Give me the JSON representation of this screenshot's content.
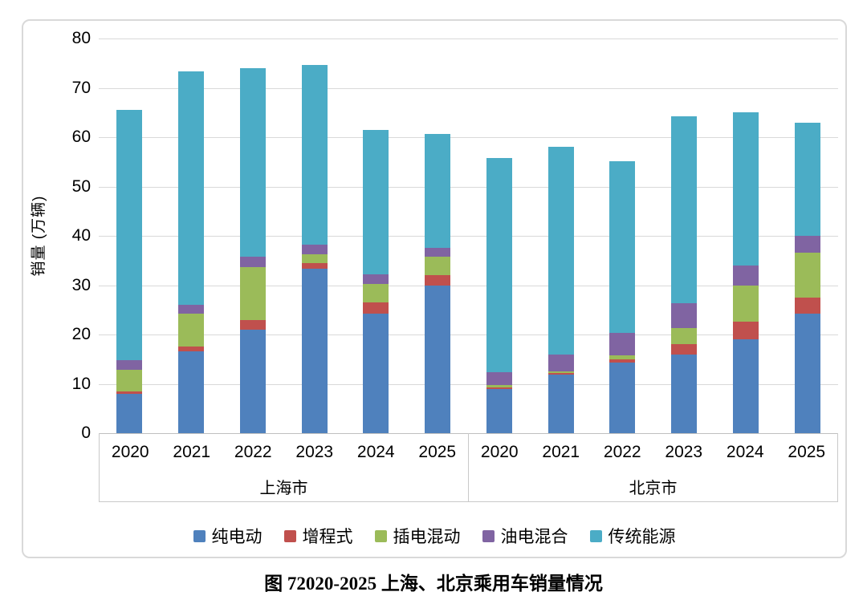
{
  "caption": "图 72020-2025 上海、北京乘用车销量情况",
  "chart_data": {
    "type": "bar",
    "stacked": true,
    "title": "图 72020-2025 上海、北京乘用车销量情况",
    "ylabel": "销量 (万辆)",
    "ylim": [
      0,
      80
    ],
    "ytick_step": 10,
    "yticks": [
      0,
      10,
      20,
      30,
      40,
      50,
      60,
      70,
      80
    ],
    "grid": true,
    "legend_position": "bottom",
    "group_labels": [
      "上海市",
      "北京市"
    ],
    "categories": [
      "2020",
      "2021",
      "2022",
      "2023",
      "2024",
      "2025",
      "2020",
      "2021",
      "2022",
      "2023",
      "2024",
      "2025"
    ],
    "series": [
      {
        "name": "纯电动",
        "color": "#4F81BD",
        "values": [
          8.0,
          16.6,
          21.0,
          33.3,
          24.2,
          29.9,
          9.0,
          11.8,
          14.3,
          15.9,
          19.1,
          24.2
        ]
      },
      {
        "name": "增程式",
        "color": "#C0504D",
        "values": [
          0.4,
          1.0,
          1.9,
          1.2,
          2.3,
          2.2,
          0.3,
          0.4,
          0.7,
          2.2,
          3.5,
          3.3
        ]
      },
      {
        "name": "插电混动",
        "color": "#9BBB59",
        "values": [
          4.4,
          6.7,
          10.8,
          1.8,
          3.7,
          3.7,
          0.4,
          0.4,
          0.8,
          3.2,
          7.3,
          9.1
        ]
      },
      {
        "name": "油电混合",
        "color": "#8064A2",
        "values": [
          2.0,
          1.8,
          2.0,
          1.9,
          2.0,
          1.8,
          2.7,
          3.4,
          4.5,
          5.0,
          4.1,
          3.4
        ]
      },
      {
        "name": "传统能源",
        "color": "#4BACC6",
        "values": [
          50.7,
          47.2,
          38.3,
          36.5,
          29.3,
          23.0,
          43.4,
          42.0,
          34.8,
          37.9,
          31.0,
          22.9
        ]
      }
    ],
    "totals": {
      "上海市": [
        65.5,
        73.3,
        74.0,
        74.7,
        61.5,
        60.6
      ],
      "北京市": [
        55.8,
        58.0,
        55.1,
        64.2,
        65.0,
        62.9
      ]
    }
  }
}
